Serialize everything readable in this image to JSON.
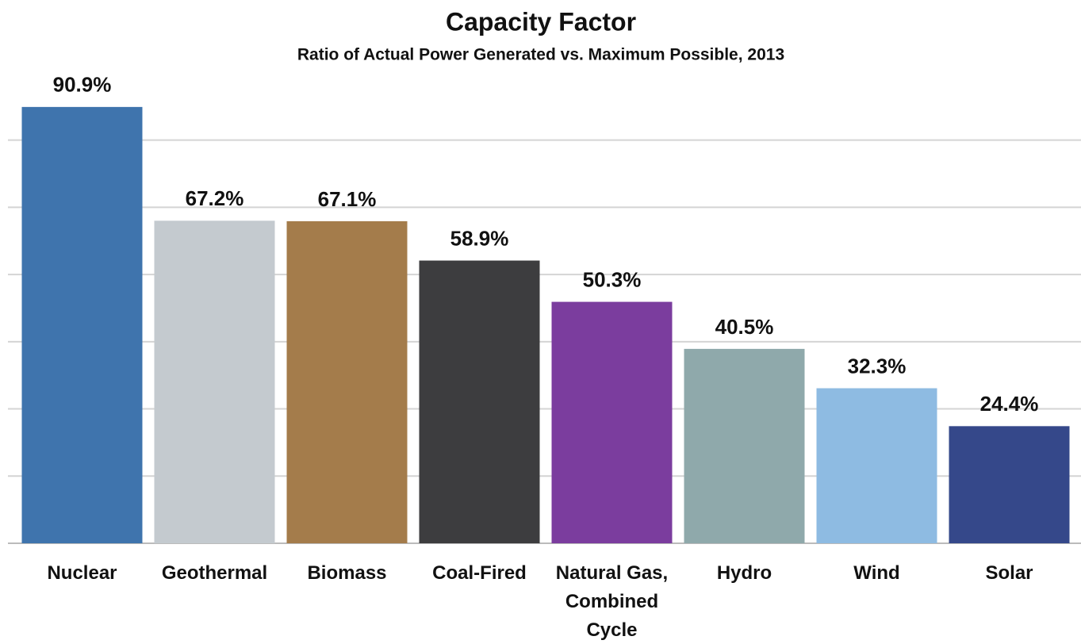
{
  "chart_data": {
    "type": "bar",
    "title": "Capacity Factor",
    "subtitle": "Ratio of Actual Power Generated vs. Maximum Possible, 2013",
    "categories": [
      "Nuclear",
      "Geothermal",
      "Biomass",
      "Coal-Fired",
      "Natural Gas, Combined Cycle",
      "Hydro",
      "Wind",
      "Solar"
    ],
    "values": [
      90.9,
      67.2,
      67.1,
      58.9,
      50.3,
      40.5,
      32.3,
      24.4
    ],
    "value_labels": [
      "90.9%",
      "67.2%",
      "67.1%",
      "58.9%",
      "50.3%",
      "40.5%",
      "32.3%",
      "24.4%"
    ],
    "colors": [
      "#3f74ad",
      "#c4cacf",
      "#a47c4b",
      "#3d3d3f",
      "#7b3d9e",
      "#8fa9ab",
      "#8ebbe2",
      "#35488a"
    ],
    "ylim": [
      0,
      96
    ],
    "yticks": [
      0,
      14,
      28,
      42,
      56,
      70,
      84
    ],
    "grid": true
  }
}
